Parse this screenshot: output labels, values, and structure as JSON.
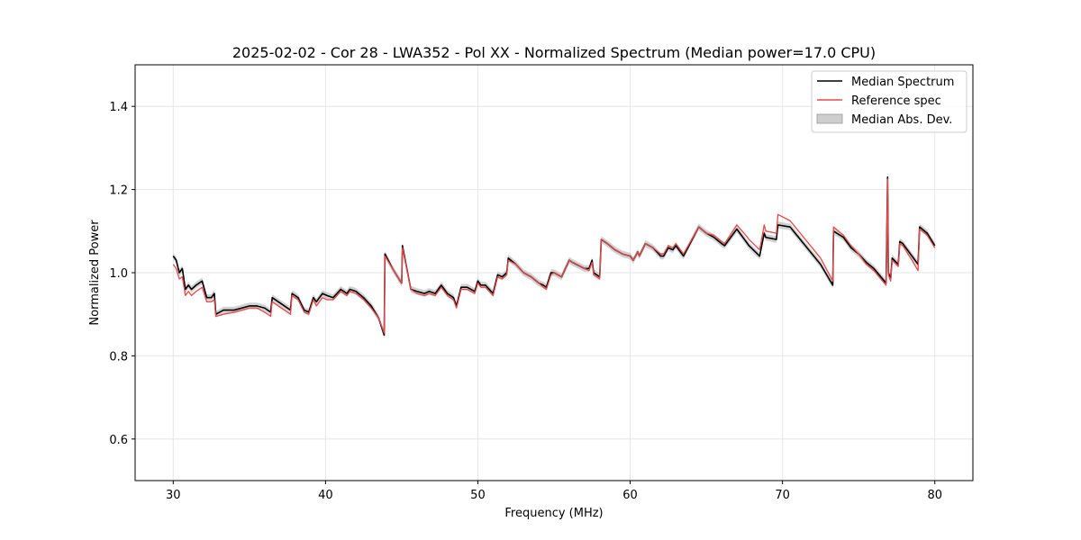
{
  "chart_data": {
    "type": "line",
    "title": "2025-02-02 - Cor 28 - LWA352 - Pol XX - Normalized Spectrum (Median power=17.0 CPU)",
    "xlabel": "Frequency (MHz)",
    "ylabel": "Normalized Power",
    "xlim": [
      27.5,
      82.5
    ],
    "ylim": [
      0.5,
      1.5
    ],
    "xticks": [
      30,
      40,
      50,
      60,
      70,
      80
    ],
    "yticks": [
      0.6,
      0.8,
      1.0,
      1.2,
      1.4
    ],
    "xtick_labels": [
      "30",
      "40",
      "50",
      "60",
      "70",
      "80"
    ],
    "ytick_labels": [
      "0.6",
      "0.8",
      "1.0",
      "1.2",
      "1.4"
    ],
    "grid": true,
    "legend_position": "top-right",
    "legend": [
      "Median Spectrum",
      "Reference spec",
      "Median Abs. Dev."
    ],
    "mad_width": 0.008,
    "series": [
      {
        "name": "Median Spectrum",
        "color": "#000000",
        "x": [
          30.0,
          30.2,
          30.4,
          30.6,
          30.8,
          31.0,
          31.2,
          31.5,
          31.9,
          32.2,
          32.5,
          32.7,
          32.8,
          33.3,
          34.0,
          35.0,
          35.5,
          36.0,
          36.4,
          36.5,
          37.7,
          37.8,
          38.2,
          38.6,
          38.9,
          39.2,
          39.4,
          39.8,
          40.1,
          40.5,
          41.0,
          41.4,
          41.6,
          42.0,
          42.5,
          43.0,
          43.5,
          43.85,
          43.9,
          44.4,
          44.9,
          45.0,
          45.05,
          45.6,
          46.0,
          46.5,
          46.8,
          47.2,
          47.6,
          48.0,
          48.4,
          48.6,
          48.9,
          49.3,
          49.8,
          50.0,
          50.2,
          50.5,
          51.0,
          51.3,
          51.6,
          51.9,
          52.0,
          52.5,
          53.0,
          53.5,
          54.0,
          54.3,
          54.5,
          54.8,
          55.0,
          55.5,
          56.0,
          56.2,
          57.0,
          57.3,
          57.5,
          57.6,
          58.0,
          58.1,
          58.5,
          59.0,
          59.5,
          60.0,
          60.2,
          60.5,
          60.6,
          61.0,
          61.5,
          62.0,
          62.2,
          62.5,
          62.8,
          63.0,
          63.5,
          64.5,
          65.0,
          65.5,
          66.0,
          66.2,
          67.0,
          67.7,
          67.8,
          68.5,
          68.8,
          68.9,
          69.6,
          69.7,
          70.5,
          71.5,
          72.5,
          73.3,
          73.35,
          74.0,
          74.5,
          75.0,
          75.5,
          76.0,
          76.8,
          76.9,
          76.95,
          77.1,
          77.2,
          77.6,
          77.7,
          77.9,
          78.5,
          78.9,
          79.0,
          79.5,
          80.0
        ],
        "y": [
          1.04,
          1.03,
          1.0,
          1.01,
          0.96,
          0.97,
          0.96,
          0.97,
          0.98,
          0.94,
          0.94,
          0.95,
          0.9,
          0.91,
          0.91,
          0.92,
          0.92,
          0.915,
          0.905,
          0.94,
          0.91,
          0.95,
          0.94,
          0.91,
          0.905,
          0.94,
          0.93,
          0.95,
          0.945,
          0.94,
          0.96,
          0.95,
          0.96,
          0.955,
          0.94,
          0.92,
          0.89,
          0.85,
          1.045,
          1.01,
          0.98,
          0.975,
          1.065,
          0.96,
          0.955,
          0.95,
          0.955,
          0.95,
          0.97,
          0.95,
          0.94,
          0.92,
          0.965,
          0.965,
          0.955,
          0.98,
          0.97,
          0.97,
          0.95,
          0.995,
          0.99,
          1.0,
          1.035,
          1.02,
          1.0,
          0.99,
          0.975,
          0.97,
          0.965,
          1.0,
          1.0,
          0.99,
          1.03,
          1.025,
          1.01,
          1.01,
          1.03,
          1.0,
          0.99,
          1.08,
          1.07,
          1.055,
          1.045,
          1.04,
          1.03,
          1.05,
          1.04,
          1.07,
          1.06,
          1.04,
          1.04,
          1.06,
          1.055,
          1.065,
          1.04,
          1.11,
          1.095,
          1.085,
          1.07,
          1.065,
          1.105,
          1.07,
          1.065,
          1.04,
          1.095,
          1.085,
          1.08,
          1.115,
          1.11,
          1.065,
          1.02,
          0.97,
          1.1,
          1.085,
          1.06,
          1.045,
          1.025,
          1.01,
          0.975,
          1.23,
          1.0,
          0.985,
          1.035,
          1.02,
          1.075,
          1.07,
          1.04,
          1.02,
          1.11,
          1.095,
          1.065
        ]
      },
      {
        "name": "Reference spec",
        "color": "#e8484a",
        "x": [
          30.0,
          30.2,
          30.4,
          30.6,
          30.8,
          31.0,
          31.2,
          31.5,
          31.9,
          32.2,
          32.5,
          32.7,
          32.8,
          33.3,
          34.0,
          35.0,
          35.5,
          36.0,
          36.4,
          36.5,
          37.7,
          37.8,
          38.2,
          38.6,
          38.9,
          39.2,
          39.4,
          39.8,
          40.1,
          40.5,
          41.0,
          41.4,
          41.6,
          42.0,
          42.5,
          43.0,
          43.5,
          43.85,
          43.9,
          44.4,
          44.9,
          45.0,
          45.05,
          45.6,
          46.0,
          46.5,
          46.8,
          47.2,
          47.6,
          48.0,
          48.4,
          48.6,
          48.9,
          49.3,
          49.8,
          50.0,
          50.2,
          50.5,
          51.0,
          51.3,
          51.6,
          51.9,
          52.0,
          52.5,
          53.0,
          53.5,
          54.0,
          54.3,
          54.5,
          54.8,
          55.0,
          55.5,
          56.0,
          56.2,
          57.0,
          57.3,
          57.5,
          57.6,
          58.0,
          58.1,
          58.5,
          59.0,
          59.5,
          60.0,
          60.2,
          60.5,
          60.6,
          61.0,
          61.5,
          62.0,
          62.2,
          62.5,
          62.8,
          63.0,
          63.5,
          64.5,
          65.0,
          65.5,
          66.0,
          66.2,
          67.0,
          67.7,
          67.8,
          68.5,
          68.8,
          68.9,
          69.6,
          69.7,
          70.5,
          71.5,
          72.5,
          73.3,
          73.35,
          74.0,
          74.5,
          75.0,
          75.5,
          76.0,
          76.8,
          76.9,
          76.95,
          77.1,
          77.2,
          77.6,
          77.7,
          77.9,
          78.5,
          78.9,
          79.0,
          79.5,
          80.0
        ],
        "y": [
          1.02,
          1.01,
          0.985,
          0.99,
          0.945,
          0.955,
          0.945,
          0.955,
          0.965,
          0.93,
          0.93,
          0.935,
          0.895,
          0.9,
          0.905,
          0.915,
          0.915,
          0.905,
          0.895,
          0.93,
          0.9,
          0.945,
          0.935,
          0.905,
          0.9,
          0.935,
          0.92,
          0.94,
          0.935,
          0.935,
          0.955,
          0.945,
          0.955,
          0.95,
          0.935,
          0.915,
          0.89,
          0.855,
          1.04,
          1.01,
          0.98,
          0.975,
          1.06,
          0.96,
          0.95,
          0.945,
          0.95,
          0.945,
          0.965,
          0.945,
          0.935,
          0.915,
          0.96,
          0.96,
          0.95,
          0.975,
          0.965,
          0.965,
          0.945,
          0.99,
          0.985,
          0.995,
          1.03,
          1.02,
          1.0,
          0.99,
          0.975,
          0.965,
          0.96,
          0.995,
          1.0,
          0.99,
          1.03,
          1.025,
          1.01,
          1.005,
          1.025,
          0.995,
          0.985,
          1.08,
          1.07,
          1.055,
          1.045,
          1.04,
          1.03,
          1.05,
          1.04,
          1.07,
          1.06,
          1.045,
          1.045,
          1.065,
          1.06,
          1.07,
          1.045,
          1.11,
          1.095,
          1.09,
          1.075,
          1.07,
          1.115,
          1.085,
          1.08,
          1.055,
          1.115,
          1.1,
          1.095,
          1.14,
          1.125,
          1.08,
          1.035,
          0.98,
          1.11,
          1.09,
          1.065,
          1.045,
          1.02,
          1.005,
          0.97,
          1.225,
          0.995,
          0.98,
          1.03,
          1.015,
          1.07,
          1.065,
          1.03,
          1.005,
          1.105,
          1.09,
          1.06
        ]
      }
    ]
  }
}
